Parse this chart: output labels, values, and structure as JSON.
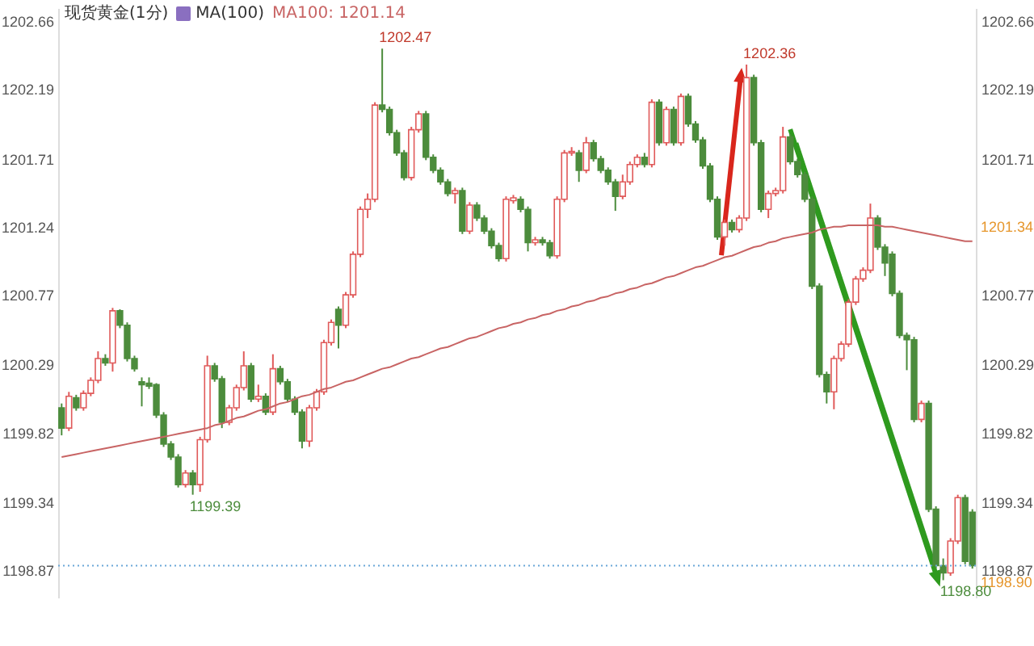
{
  "chart_data": {
    "type": "candlestick",
    "title": "现货黄金(1分)",
    "categories": [
      null,
      null,
      null,
      null,
      null,
      null,
      null,
      null,
      null,
      null,
      null,
      null,
      null,
      null,
      null,
      null,
      null,
      null,
      null,
      null,
      null,
      null,
      null,
      null,
      null,
      null,
      null,
      null,
      null,
      null,
      null,
      null,
      null,
      null,
      null,
      null,
      null,
      null,
      null,
      null,
      null,
      null,
      null,
      null,
      null,
      null,
      null,
      null,
      null,
      null,
      null,
      null,
      null,
      null,
      null,
      null,
      null,
      null,
      null,
      null,
      null,
      null,
      null,
      null,
      null,
      null,
      null,
      null,
      null,
      null,
      null,
      null,
      null,
      null,
      null,
      null,
      null,
      null,
      null,
      null,
      null,
      null,
      null,
      null,
      null,
      null,
      null,
      null,
      null,
      null,
      null,
      null,
      null,
      null,
      null,
      null,
      null,
      null,
      null,
      null,
      null,
      null,
      null,
      null,
      null,
      null,
      null,
      null,
      null,
      null,
      null,
      null,
      null,
      null,
      null,
      null,
      null,
      null,
      null,
      null,
      null,
      null,
      null,
      null,
      null,
      null
    ],
    "ohlc": [
      [
        1199.99,
        1200.02,
        1199.8,
        1199.85
      ],
      [
        1199.85,
        1200.1,
        1199.83,
        1200.07
      ],
      [
        1200.06,
        1200.08,
        1199.97,
        1199.99
      ],
      [
        1199.99,
        1200.11,
        1199.97,
        1200.09
      ],
      [
        1200.09,
        1200.2,
        1200.07,
        1200.18
      ],
      [
        1200.18,
        1200.38,
        1200.16,
        1200.33
      ],
      [
        1200.33,
        1200.36,
        1200.28,
        1200.3
      ],
      [
        1200.3,
        1200.68,
        1200.24,
        1200.66
      ],
      [
        1200.66,
        1200.67,
        1200.54,
        1200.56
      ],
      [
        1200.56,
        1200.58,
        1200.31,
        1200.33
      ],
      [
        1200.33,
        1200.35,
        1200.24,
        1200.26
      ],
      [
        1200.17,
        1200.2,
        1200.0,
        1200.15
      ],
      [
        1200.16,
        1200.2,
        1200.12,
        1200.14
      ],
      [
        1200.15,
        1200.16,
        1199.92,
        1199.94
      ],
      [
        1199.94,
        1199.96,
        1199.72,
        1199.74
      ],
      [
        1199.74,
        1199.76,
        1199.63,
        1199.65
      ],
      [
        1199.65,
        1199.67,
        1199.44,
        1199.46
      ],
      [
        1199.46,
        1199.56,
        1199.44,
        1199.54
      ],
      [
        1199.54,
        1199.56,
        1199.39,
        1199.46
      ],
      [
        1199.46,
        1199.79,
        1199.41,
        1199.77
      ],
      [
        1199.77,
        1200.35,
        1199.75,
        1200.28
      ],
      [
        1200.28,
        1200.3,
        1200.17,
        1200.19
      ],
      [
        1200.19,
        1200.21,
        1199.85,
        1199.89
      ],
      [
        1199.89,
        1200.01,
        1199.87,
        1199.99
      ],
      [
        1199.99,
        1200.15,
        1199.97,
        1200.13
      ],
      [
        1200.13,
        1200.38,
        1200.11,
        1200.28
      ],
      [
        1200.28,
        1200.3,
        1200.03,
        1200.05
      ],
      [
        1200.05,
        1200.15,
        1200.03,
        1200.07
      ],
      [
        1200.07,
        1200.09,
        1199.94,
        1199.96
      ],
      [
        1199.96,
        1200.36,
        1199.94,
        1200.26
      ],
      [
        1200.26,
        1200.28,
        1200.15,
        1200.17
      ],
      [
        1200.17,
        1200.19,
        1200.03,
        1200.05
      ],
      [
        1200.05,
        1200.07,
        1199.94,
        1199.96
      ],
      [
        1199.96,
        1199.98,
        1199.71,
        1199.76
      ],
      [
        1199.76,
        1200.01,
        1199.72,
        1199.99
      ],
      [
        1199.99,
        1200.12,
        1199.97,
        1200.1
      ],
      [
        1200.1,
        1200.46,
        1200.08,
        1200.44
      ],
      [
        1200.44,
        1200.6,
        1200.42,
        1200.58
      ],
      [
        1200.67,
        1200.69,
        1200.4,
        1200.56
      ],
      [
        1200.56,
        1200.79,
        1200.54,
        1200.77
      ],
      [
        1200.77,
        1201.07,
        1200.75,
        1201.05
      ],
      [
        1201.05,
        1201.38,
        1201.03,
        1201.36
      ],
      [
        1201.36,
        1201.47,
        1201.3,
        1201.43
      ],
      [
        1201.43,
        1202.1,
        1201.41,
        1202.08
      ],
      [
        1202.08,
        1202.47,
        1202.03,
        1202.05
      ],
      [
        1202.05,
        1202.07,
        1201.87,
        1201.89
      ],
      [
        1201.89,
        1201.91,
        1201.73,
        1201.75
      ],
      [
        1201.75,
        1201.77,
        1201.56,
        1201.58
      ],
      [
        1201.58,
        1201.93,
        1201.56,
        1201.91
      ],
      [
        1201.91,
        1202.04,
        1201.89,
        1202.02
      ],
      [
        1202.02,
        1202.04,
        1201.7,
        1201.72
      ],
      [
        1201.72,
        1201.74,
        1201.61,
        1201.63
      ],
      [
        1201.63,
        1201.65,
        1201.53,
        1201.55
      ],
      [
        1201.55,
        1201.57,
        1201.45,
        1201.47
      ],
      [
        1201.47,
        1201.51,
        1201.4,
        1201.49
      ],
      [
        1201.49,
        1201.51,
        1201.19,
        1201.21
      ],
      [
        1201.21,
        1201.41,
        1201.19,
        1201.39
      ],
      [
        1201.39,
        1201.41,
        1201.28,
        1201.3
      ],
      [
        1201.3,
        1201.32,
        1201.19,
        1201.21
      ],
      [
        1201.21,
        1201.23,
        1201.09,
        1201.11
      ],
      [
        1201.11,
        1201.13,
        1201.0,
        1201.02
      ],
      [
        1201.02,
        1201.45,
        1201.0,
        1201.43
      ],
      [
        1201.42,
        1201.46,
        1201.4,
        1201.44
      ],
      [
        1201.43,
        1201.45,
        1201.34,
        1201.36
      ],
      [
        1201.36,
        1201.38,
        1201.07,
        1201.13
      ],
      [
        1201.13,
        1201.17,
        1201.11,
        1201.15
      ],
      [
        1201.15,
        1201.17,
        1201.11,
        1201.13
      ],
      [
        1201.13,
        1201.15,
        1201.02,
        1201.04
      ],
      [
        1201.04,
        1201.45,
        1201.02,
        1201.43
      ],
      [
        1201.43,
        1201.77,
        1201.41,
        1201.75
      ],
      [
        1201.75,
        1201.79,
        1201.73,
        1201.76
      ],
      [
        1201.75,
        1201.77,
        1201.55,
        1201.63
      ],
      [
        1201.63,
        1201.86,
        1201.61,
        1201.82
      ],
      [
        1201.82,
        1201.84,
        1201.69,
        1201.71
      ],
      [
        1201.71,
        1201.73,
        1201.61,
        1201.63
      ],
      [
        1201.63,
        1201.65,
        1201.53,
        1201.55
      ],
      [
        1201.55,
        1201.57,
        1201.35,
        1201.45
      ],
      [
        1201.45,
        1201.6,
        1201.43,
        1201.55
      ],
      [
        1201.55,
        1201.69,
        1201.53,
        1201.67
      ],
      [
        1201.67,
        1201.74,
        1201.65,
        1201.72
      ],
      [
        1201.72,
        1201.75,
        1201.65,
        1201.67
      ],
      [
        1201.67,
        1202.12,
        1201.65,
        1202.1
      ],
      [
        1202.1,
        1202.12,
        1201.8,
        1201.82
      ],
      [
        1201.82,
        1202.07,
        1201.8,
        1202.05
      ],
      [
        1202.05,
        1202.07,
        1201.8,
        1201.82
      ],
      [
        1201.82,
        1202.16,
        1201.8,
        1202.14
      ],
      [
        1202.14,
        1202.16,
        1201.93,
        1201.95
      ],
      [
        1201.95,
        1201.97,
        1201.82,
        1201.84
      ],
      [
        1201.84,
        1201.86,
        1201.64,
        1201.66
      ],
      [
        1201.66,
        1201.68,
        1201.41,
        1201.43
      ],
      [
        1201.43,
        1201.45,
        1201.15,
        1201.17
      ],
      [
        1201.17,
        1201.29,
        1201.11,
        1201.27
      ],
      [
        1201.27,
        1201.29,
        1201.2,
        1201.22
      ],
      [
        1201.22,
        1201.32,
        1201.2,
        1201.3
      ],
      [
        1201.3,
        1202.36,
        1201.28,
        1202.27
      ],
      [
        1202.27,
        1202.29,
        1201.8,
        1201.82
      ],
      [
        1201.82,
        1201.84,
        1201.34,
        1201.36
      ],
      [
        1201.36,
        1201.49,
        1201.3,
        1201.47
      ],
      [
        1201.47,
        1201.51,
        1201.45,
        1201.49
      ],
      [
        1201.49,
        1201.93,
        1201.47,
        1201.86
      ],
      [
        1201.86,
        1201.88,
        1201.67,
        1201.69
      ],
      [
        1201.69,
        1201.71,
        1201.58,
        1201.6
      ],
      [
        1201.6,
        1201.62,
        1201.41,
        1201.43
      ],
      [
        1201.43,
        1201.45,
        1200.81,
        1200.83
      ],
      [
        1200.83,
        1200.85,
        1200.2,
        1200.22
      ],
      [
        1200.22,
        1200.24,
        1200.02,
        1200.1
      ],
      [
        1200.1,
        1200.35,
        1199.98,
        1200.33
      ],
      [
        1200.33,
        1200.45,
        1200.31,
        1200.43
      ],
      [
        1200.43,
        1200.74,
        1200.41,
        1200.72
      ],
      [
        1200.72,
        1200.9,
        1200.7,
        1200.88
      ],
      [
        1200.88,
        1200.96,
        1200.86,
        1200.94
      ],
      [
        1200.94,
        1201.4,
        1200.92,
        1201.3
      ],
      [
        1201.3,
        1201.32,
        1201.08,
        1201.1
      ],
      [
        1201.1,
        1201.12,
        1200.9,
        1200.99
      ],
      [
        1201.05,
        1201.07,
        1200.76,
        1200.78
      ],
      [
        1200.78,
        1200.8,
        1200.47,
        1200.49
      ],
      [
        1200.49,
        1200.51,
        1200.25,
        1200.46
      ],
      [
        1200.46,
        1200.48,
        1199.89,
        1199.91
      ],
      [
        1199.91,
        1200.04,
        1199.89,
        1200.02
      ],
      [
        1200.02,
        1200.04,
        1199.27,
        1199.29
      ],
      [
        1199.29,
        1199.31,
        1198.88,
        1198.9
      ],
      [
        1198.9,
        1198.95,
        1198.8,
        1198.85
      ],
      [
        1198.85,
        1199.09,
        1198.83,
        1199.07
      ],
      [
        1199.07,
        1199.39,
        1199.05,
        1199.37
      ],
      [
        1199.37,
        1199.39,
        1198.91,
        1198.93
      ],
      [
        1199.27,
        1199.29,
        1198.88,
        1198.9
      ]
    ],
    "colors": [
      "#4c8c3c",
      "#e05a5a",
      "#4c8c3c",
      "#e05a5a",
      "#e05a5a",
      "#e05a5a",
      "#4c8c3c",
      "#e05a5a",
      "#4c8c3c",
      "#4c8c3c",
      "#4c8c3c",
      "#4c8c3c",
      "#4c8c3c",
      "#4c8c3c",
      "#4c8c3c",
      "#4c8c3c",
      "#4c8c3c",
      "#e05a5a",
      "#4c8c3c",
      "#e05a5a",
      "#e05a5a",
      "#4c8c3c",
      "#4c8c3c",
      "#e05a5a",
      "#e05a5a",
      "#e05a5a",
      "#4c8c3c",
      "#e05a5a",
      "#4c8c3c",
      "#e05a5a",
      "#4c8c3c",
      "#4c8c3c",
      "#4c8c3c",
      "#4c8c3c",
      "#e05a5a",
      "#e05a5a",
      "#e05a5a",
      "#e05a5a",
      "#4c8c3c",
      "#e05a5a",
      "#e05a5a",
      "#e05a5a",
      "#e05a5a",
      "#e05a5a",
      "#4c8c3c",
      "#4c8c3c",
      "#4c8c3c",
      "#4c8c3c",
      "#e05a5a",
      "#e05a5a",
      "#4c8c3c",
      "#4c8c3c",
      "#4c8c3c",
      "#4c8c3c",
      "#e05a5a",
      "#4c8c3c",
      "#e05a5a",
      "#4c8c3c",
      "#4c8c3c",
      "#4c8c3c",
      "#4c8c3c",
      "#e05a5a",
      "#e05a5a",
      "#4c8c3c",
      "#4c8c3c",
      "#e05a5a",
      "#4c8c3c",
      "#4c8c3c",
      "#e05a5a",
      "#e05a5a",
      "#e05a5a",
      "#4c8c3c",
      "#e05a5a",
      "#4c8c3c",
      "#4c8c3c",
      "#4c8c3c",
      "#4c8c3c",
      "#e05a5a",
      "#e05a5a",
      "#e05a5a",
      "#4c8c3c",
      "#e05a5a",
      "#4c8c3c",
      "#e05a5a",
      "#4c8c3c",
      "#e05a5a",
      "#4c8c3c",
      "#4c8c3c",
      "#4c8c3c",
      "#4c8c3c",
      "#4c8c3c",
      "#e05a5a",
      "#4c8c3c",
      "#e05a5a",
      "#e05a5a",
      "#4c8c3c",
      "#4c8c3c",
      "#e05a5a",
      "#e05a5a",
      "#e05a5a",
      "#4c8c3c",
      "#4c8c3c",
      "#4c8c3c",
      "#4c8c3c",
      "#4c8c3c",
      "#4c8c3c",
      "#e05a5a",
      "#e05a5a",
      "#e05a5a",
      "#e05a5a",
      "#e05a5a",
      "#e05a5a",
      "#4c8c3c",
      "#4c8c3c",
      "#4c8c3c",
      "#4c8c3c",
      "#4c8c3c",
      "#4c8c3c",
      "#e05a5a",
      "#4c8c3c",
      "#4c8c3c",
      "#4c8c3c",
      "#e05a5a",
      "#e05a5a",
      "#4c8c3c",
      "#4c8c3c"
    ],
    "series": [
      {
        "type": "line",
        "color": "#c86464",
        "values": [
          1199.65,
          1199.66,
          1199.67,
          1199.68,
          1199.69,
          1199.7,
          1199.71,
          1199.72,
          1199.73,
          1199.74,
          1199.75,
          1199.76,
          1199.77,
          1199.78,
          1199.79,
          1199.8,
          1199.81,
          1199.82,
          1199.83,
          1199.84,
          1199.85,
          1199.87,
          1199.88,
          1199.9,
          1199.92,
          1199.93,
          1199.95,
          1199.97,
          1199.98,
          1200.0,
          1200.02,
          1200.03,
          1200.05,
          1200.07,
          1200.08,
          1200.1,
          1200.12,
          1200.13,
          1200.15,
          1200.17,
          1200.18,
          1200.2,
          1200.22,
          1200.24,
          1200.26,
          1200.27,
          1200.29,
          1200.31,
          1200.33,
          1200.34,
          1200.36,
          1200.38,
          1200.4,
          1200.41,
          1200.43,
          1200.45,
          1200.47,
          1200.48,
          1200.5,
          1200.52,
          1200.54,
          1200.55,
          1200.57,
          1200.58,
          1200.6,
          1200.61,
          1200.63,
          1200.64,
          1200.66,
          1200.67,
          1200.69,
          1200.7,
          1200.72,
          1200.73,
          1200.75,
          1200.76,
          1200.78,
          1200.79,
          1200.81,
          1200.82,
          1200.84,
          1200.85,
          1200.87,
          1200.89,
          1200.9,
          1200.92,
          1200.94,
          1200.96,
          1200.97,
          1200.99,
          1201.01,
          1201.03,
          1201.04,
          1201.06,
          1201.08,
          1201.1,
          1201.11,
          1201.13,
          1201.14,
          1201.16,
          1201.17,
          1201.18,
          1201.19,
          1201.2,
          1201.22,
          1201.23,
          1201.24,
          1201.24,
          1201.25,
          1201.25,
          1201.25,
          1201.25,
          1201.25,
          1201.24,
          1201.24,
          1201.23,
          1201.22,
          1201.21,
          1201.2,
          1201.19,
          1201.18,
          1201.17,
          1201.16,
          1201.15,
          1201.14,
          1201.14
        ]
      }
    ],
    "ylim": [
      1198.68,
      1202.75
    ],
    "yticks": [
      1202.66,
      1202.19,
      1201.71,
      1201.24,
      1200.77,
      1200.29,
      1199.82,
      1199.34,
      1198.87
    ],
    "y2lim": [
      1198.68,
      1202.75
    ],
    "y2ticks": [
      1202.66,
      1202.19,
      1201.71,
      1200.77,
      1200.29,
      1199.82,
      1199.34,
      1198.87
    ],
    "ref_lines": [
      {
        "axis": "y2",
        "value": 1198.9,
        "label": "1198.90",
        "color": "#6aa7d8",
        "line_style": "dotted"
      }
    ],
    "annotations": [
      "MA(100)",
      "MA100: 1201.14",
      "1202.47",
      "1199.39",
      "1202.36",
      "1198.80",
      "1201.34"
    ]
  }
}
